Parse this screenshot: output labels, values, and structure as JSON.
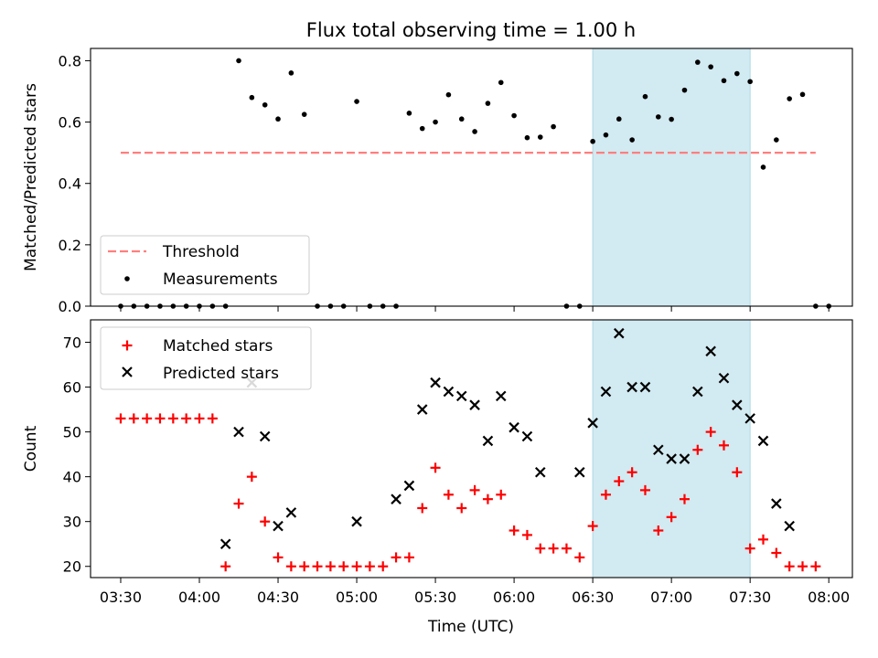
{
  "chart_data": {
    "type": "scatter",
    "title": "Flux total observing time = 1.00 h",
    "x_tick_labels": [
      "03:30",
      "04:00",
      "04:30",
      "05:00",
      "05:30",
      "06:00",
      "06:30",
      "07:00",
      "07:30",
      "08:00"
    ],
    "x_tick_minutes": [
      210,
      240,
      270,
      300,
      330,
      360,
      390,
      420,
      450,
      480
    ],
    "xlabel": "Time (UTC)",
    "xlim_minutes": [
      198.5,
      489.0
    ],
    "highlight_span_minutes": [
      390,
      450
    ],
    "highlight_color": "#add8e6",
    "panels": [
      {
        "ylabel": "Matched/Predicted stars",
        "ylim": [
          0,
          0.84
        ],
        "yticks": [
          "0.0",
          "0.2",
          "0.4",
          "0.6",
          "0.8"
        ],
        "ytick_values": [
          0,
          0.2,
          0.4,
          0.6,
          0.8
        ],
        "threshold": {
          "name": "Threshold",
          "value": 0.5,
          "x_range_minutes": [
            210,
            475
          ],
          "color": "#ff7f7f"
        },
        "series": [
          {
            "name": "Measurements",
            "color": "#000000",
            "points": [
              [
                210,
                0
              ],
              [
                215,
                0
              ],
              [
                220,
                0
              ],
              [
                225,
                0
              ],
              [
                230,
                0
              ],
              [
                235,
                0
              ],
              [
                240,
                0
              ],
              [
                245,
                0
              ],
              [
                250,
                0
              ],
              [
                255,
                0.8
              ],
              [
                260,
                0.68
              ],
              [
                265,
                0.656
              ],
              [
                270,
                0.61
              ],
              [
                275,
                0.76
              ],
              [
                280,
                0.625
              ],
              [
                285,
                0
              ],
              [
                290,
                0
              ],
              [
                295,
                0
              ],
              [
                300,
                0.667
              ],
              [
                305,
                0
              ],
              [
                310,
                0
              ],
              [
                315,
                0
              ],
              [
                320,
                0.629
              ],
              [
                325,
                0.579
              ],
              [
                330,
                0.6
              ],
              [
                335,
                0.689
              ],
              [
                340,
                0.61
              ],
              [
                345,
                0.569
              ],
              [
                350,
                0.661
              ],
              [
                355,
                0.729
              ],
              [
                360,
                0.621
              ],
              [
                365,
                0.549
              ],
              [
                370,
                0.551
              ],
              [
                375,
                0.585
              ],
              [
                380,
                0
              ],
              [
                385,
                0
              ],
              [
                390,
                0.537
              ],
              [
                395,
                0.558
              ],
              [
                400,
                0.61
              ],
              [
                405,
                0.542
              ],
              [
                410,
                0.683
              ],
              [
                415,
                0.617
              ],
              [
                420,
                0.609
              ],
              [
                425,
                0.704
              ],
              [
                430,
                0.795
              ],
              [
                435,
                0.78
              ],
              [
                440,
                0.735
              ],
              [
                445,
                0.758
              ],
              [
                450,
                0.732
              ],
              [
                455,
                0.453
              ],
              [
                460,
                0.542
              ],
              [
                465,
                0.676
              ],
              [
                470,
                0.69
              ],
              [
                475,
                0
              ],
              [
                480,
                0
              ]
            ]
          }
        ],
        "legend": {
          "placement": "lower-left",
          "entries": [
            "Threshold",
            "Measurements"
          ]
        }
      },
      {
        "ylabel": "Count",
        "ylim": [
          17.5,
          75
        ],
        "yticks": [
          "20",
          "30",
          "40",
          "50",
          "60",
          "70"
        ],
        "ytick_values": [
          20,
          30,
          40,
          50,
          60,
          70
        ],
        "series": [
          {
            "name": "Matched stars",
            "color": "#ff0000",
            "marker": "plus",
            "points": [
              [
                210,
                53
              ],
              [
                215,
                53
              ],
              [
                220,
                53
              ],
              [
                225,
                53
              ],
              [
                230,
                53
              ],
              [
                235,
                53
              ],
              [
                240,
                53
              ],
              [
                245,
                53
              ],
              [
                250,
                20
              ],
              [
                255,
                34
              ],
              [
                260,
                40
              ],
              [
                265,
                30
              ],
              [
                270,
                22
              ],
              [
                275,
                20
              ],
              [
                280,
                20
              ],
              [
                285,
                20
              ],
              [
                290,
                20
              ],
              [
                295,
                20
              ],
              [
                300,
                20
              ],
              [
                305,
                20
              ],
              [
                310,
                20
              ],
              [
                315,
                22
              ],
              [
                320,
                22
              ],
              [
                325,
                33
              ],
              [
                330,
                42
              ],
              [
                335,
                36
              ],
              [
                340,
                33
              ],
              [
                345,
                37
              ],
              [
                350,
                35
              ],
              [
                355,
                36
              ],
              [
                360,
                28
              ],
              [
                365,
                27
              ],
              [
                370,
                24
              ],
              [
                375,
                24
              ],
              [
                380,
                24
              ],
              [
                385,
                22
              ],
              [
                390,
                29
              ],
              [
                395,
                36
              ],
              [
                400,
                39
              ],
              [
                405,
                41
              ],
              [
                410,
                37
              ],
              [
                415,
                28
              ],
              [
                420,
                31
              ],
              [
                425,
                35
              ],
              [
                430,
                46
              ],
              [
                435,
                50
              ],
              [
                440,
                47
              ],
              [
                445,
                41
              ],
              [
                450,
                24
              ],
              [
                455,
                26
              ],
              [
                460,
                23
              ],
              [
                465,
                20
              ],
              [
                470,
                20
              ],
              [
                475,
                20
              ]
            ]
          },
          {
            "name": "Predicted stars",
            "color": "#000000",
            "marker": "x",
            "points": [
              [
                250,
                25
              ],
              [
                255,
                50
              ],
              [
                260,
                61
              ],
              [
                265,
                49
              ],
              [
                270,
                29
              ],
              [
                275,
                32
              ],
              [
                300,
                30
              ],
              [
                315,
                35
              ],
              [
                320,
                38
              ],
              [
                325,
                55
              ],
              [
                330,
                61
              ],
              [
                335,
                59
              ],
              [
                340,
                58
              ],
              [
                345,
                56
              ],
              [
                350,
                48
              ],
              [
                355,
                58
              ],
              [
                360,
                51
              ],
              [
                365,
                49
              ],
              [
                370,
                41
              ],
              [
                385,
                41
              ],
              [
                390,
                52
              ],
              [
                395,
                59
              ],
              [
                400,
                72
              ],
              [
                405,
                60
              ],
              [
                410,
                60
              ],
              [
                415,
                46
              ],
              [
                420,
                44
              ],
              [
                425,
                44
              ],
              [
                430,
                59
              ],
              [
                435,
                68
              ],
              [
                440,
                62
              ],
              [
                445,
                56
              ],
              [
                450,
                53
              ],
              [
                455,
                48
              ],
              [
                460,
                34
              ],
              [
                465,
                29
              ]
            ]
          }
        ],
        "legend": {
          "placement": "top-left",
          "entries": [
            "Matched stars",
            "Predicted stars"
          ]
        }
      }
    ]
  }
}
